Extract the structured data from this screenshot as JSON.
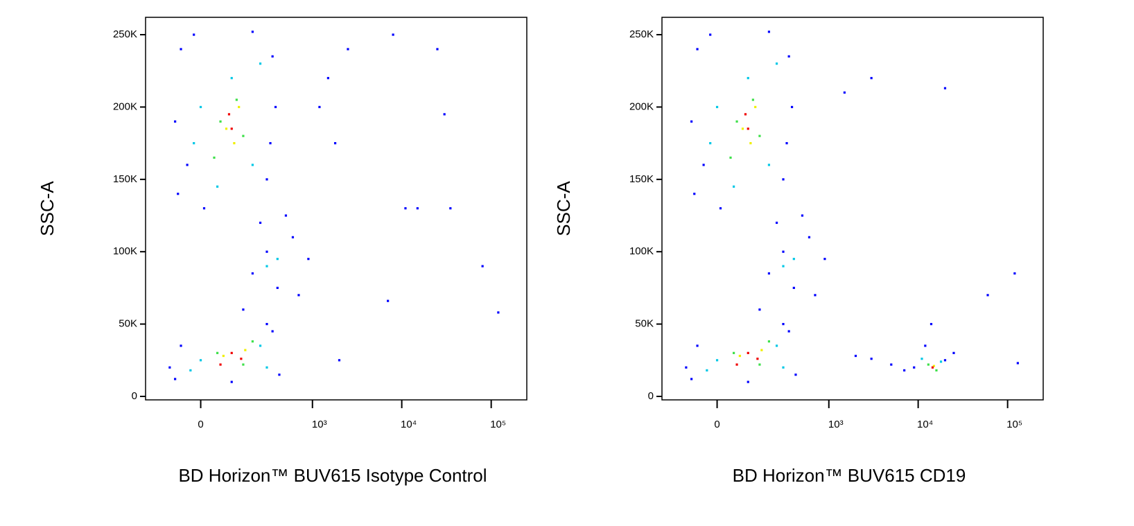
{
  "chart_data": [
    {
      "type": "scatter",
      "x_label": "BD Horizon™ BUV615 Isotype Control",
      "y_label": "SSC-A",
      "xscale": "biexponential",
      "xlim": [
        -220,
        250000
      ],
      "ylim": [
        -2400,
        262000
      ],
      "xticks": [
        0,
        {
          "value": 1000,
          "label": "10³"
        },
        {
          "value": 10000,
          "label": "10⁴"
        },
        {
          "value": 100000,
          "label": "10⁵"
        }
      ],
      "yticks": [
        0,
        {
          "value": 50000,
          "label": "50K"
        },
        {
          "value": 100000,
          "label": "100K"
        },
        {
          "value": 150000,
          "label": "150K"
        },
        {
          "value": 200000,
          "label": "200K"
        },
        {
          "value": 250000,
          "label": "250K"
        }
      ],
      "series": [
        {
          "color": "#0000ff",
          "x": [
            -60,
            -40,
            -70,
            350,
            300,
            -20,
            200,
            380,
            -80,
            10,
            250,
            330,
            150,
            600,
            900,
            400,
            200,
            700,
            500,
            300,
            -100,
            -60,
            350,
            420,
            -80,
            300,
            100,
            1500,
            2500,
            8000,
            25000,
            30000,
            11000,
            35000,
            80000,
            120000,
            7000,
            2000,
            15000,
            1200,
            1800
          ],
          "values": [
            240000,
            160000,
            140000,
            235000,
            150000,
            250000,
            252000,
            200000,
            190000,
            130000,
            120000,
            175000,
            60000,
            110000,
            95000,
            75000,
            85000,
            70000,
            125000,
            100000,
            20000,
            35000,
            45000,
            15000,
            12000,
            50000,
            10000,
            220000,
            240000,
            250000,
            240000,
            195000,
            130000,
            130000,
            90000,
            58000,
            66000,
            25000,
            130000,
            200000,
            175000
          ]
        },
        {
          "color": "#00c8e6",
          "x": [
            0,
            100,
            200,
            50,
            250,
            -20,
            300,
            400,
            0,
            250,
            -30,
            300
          ],
          "values": [
            200000,
            220000,
            160000,
            145000,
            230000,
            175000,
            90000,
            95000,
            25000,
            35000,
            18000,
            20000
          ]
        },
        {
          "color": "#3ee04a",
          "x": [
            60,
            120,
            40,
            150,
            50,
            150,
            200
          ],
          "values": [
            190000,
            205000,
            165000,
            180000,
            30000,
            22000,
            38000
          ]
        },
        {
          "color": "#f0f000",
          "x": [
            80,
            110,
            130,
            70,
            160
          ],
          "values": [
            185000,
            175000,
            200000,
            28000,
            32000
          ]
        },
        {
          "color": "#f00000",
          "x": [
            100,
            90,
            100,
            140,
            60
          ],
          "values": [
            185000,
            195000,
            30000,
            26000,
            22000
          ]
        }
      ]
    },
    {
      "type": "scatter",
      "x_label": "BD Horizon™ BUV615 CD19",
      "y_label": "SSC-A",
      "xscale": "biexponential",
      "xlim": [
        -220,
        250000
      ],
      "ylim": [
        -2400,
        262000
      ],
      "xticks": [
        0,
        {
          "value": 1000,
          "label": "10³"
        },
        {
          "value": 10000,
          "label": "10⁴"
        },
        {
          "value": 100000,
          "label": "10⁵"
        }
      ],
      "yticks": [
        0,
        {
          "value": 50000,
          "label": "50K"
        },
        {
          "value": 100000,
          "label": "100K"
        },
        {
          "value": 150000,
          "label": "150K"
        },
        {
          "value": 200000,
          "label": "200K"
        },
        {
          "value": 250000,
          "label": "250K"
        }
      ],
      "series": [
        {
          "color": "#0000ff",
          "x": [
            -60,
            -40,
            -70,
            350,
            300,
            -20,
            200,
            380,
            -80,
            10,
            250,
            330,
            150,
            600,
            900,
            400,
            200,
            700,
            500,
            300,
            -100,
            -60,
            350,
            420,
            -80,
            300,
            100,
            1500,
            3000,
            9000,
            20000,
            12000,
            25000,
            14000,
            7000,
            2000,
            3000,
            5000,
            130000,
            120000,
            60000,
            20000
          ],
          "values": [
            240000,
            160000,
            140000,
            235000,
            150000,
            250000,
            252000,
            200000,
            190000,
            130000,
            120000,
            175000,
            60000,
            110000,
            95000,
            75000,
            85000,
            70000,
            125000,
            100000,
            20000,
            35000,
            45000,
            15000,
            12000,
            50000,
            10000,
            210000,
            220000,
            20000,
            25000,
            35000,
            30000,
            50000,
            18000,
            28000,
            26000,
            22000,
            23000,
            85000,
            70000,
            213000
          ]
        },
        {
          "color": "#00c8e6",
          "x": [
            0,
            100,
            200,
            50,
            250,
            -20,
            300,
            400,
            0,
            250,
            -30,
            300,
            11000,
            18000
          ],
          "values": [
            200000,
            220000,
            160000,
            145000,
            230000,
            175000,
            90000,
            95000,
            25000,
            35000,
            18000,
            20000,
            26000,
            24000
          ]
        },
        {
          "color": "#3ee04a",
          "x": [
            60,
            120,
            40,
            150,
            50,
            150,
            200,
            13000,
            16000
          ],
          "values": [
            190000,
            205000,
            165000,
            180000,
            30000,
            22000,
            38000,
            22000,
            18000
          ]
        },
        {
          "color": "#f0f000",
          "x": [
            80,
            110,
            130,
            70,
            160,
            15000
          ],
          "values": [
            185000,
            175000,
            200000,
            28000,
            32000,
            21000
          ]
        },
        {
          "color": "#f00000",
          "x": [
            100,
            90,
            100,
            140,
            60,
            14500
          ],
          "values": [
            185000,
            195000,
            30000,
            26000,
            22000,
            20000
          ]
        }
      ]
    }
  ]
}
